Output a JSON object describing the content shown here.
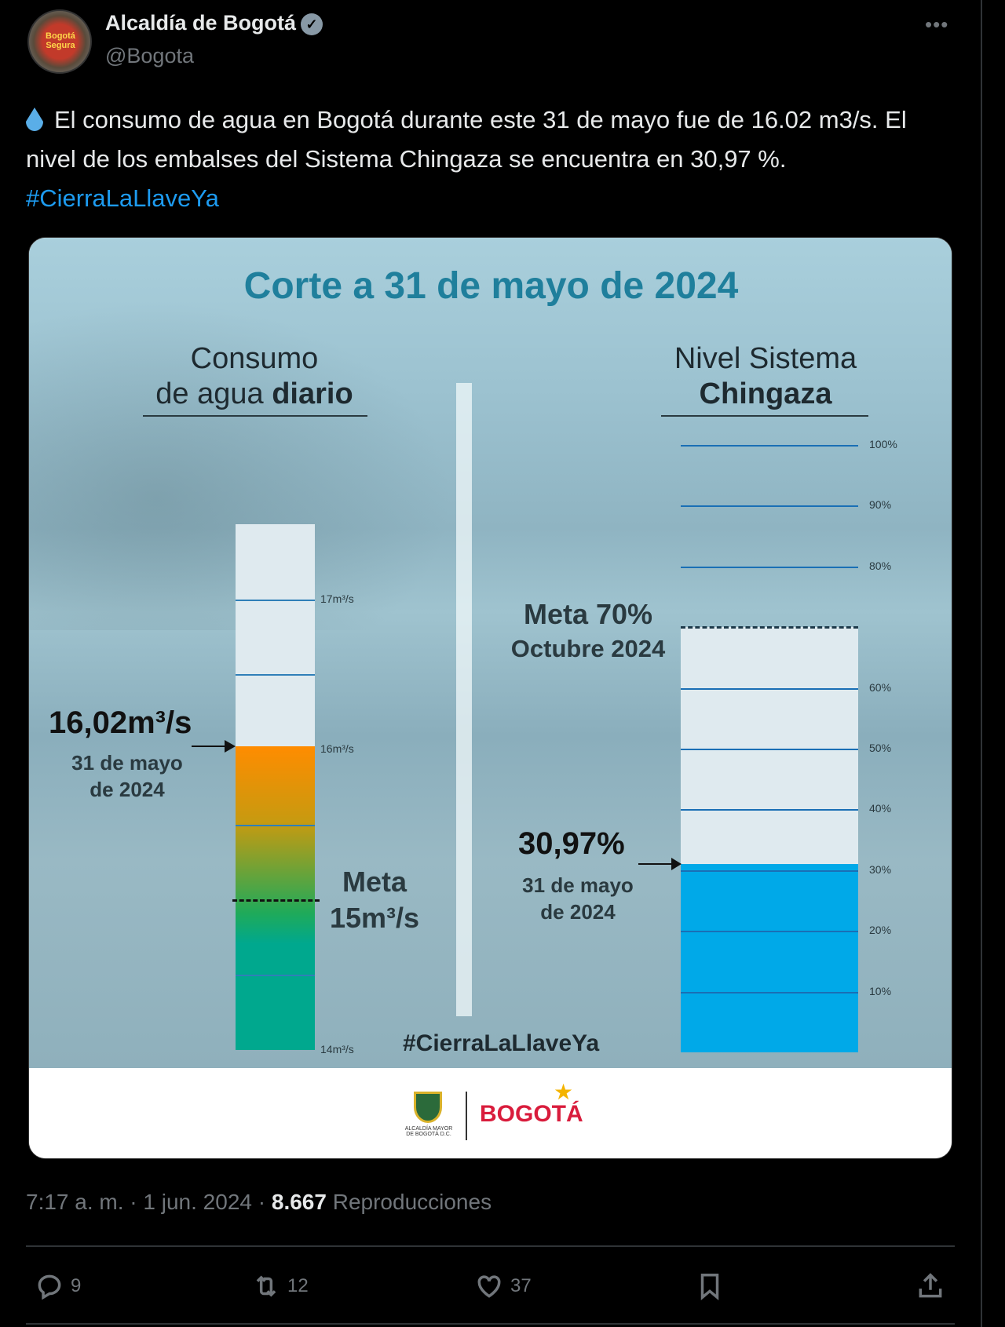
{
  "author": {
    "name": "Alcaldía de Bogotá",
    "handle": "@Bogota",
    "avatar_text": "Bogotá Segura",
    "verified": true
  },
  "tweet": {
    "text": "El consumo de agua en Bogotá durante este 31 de mayo fue de 16.02 m3/s. El nivel de los embalses del Sistema Chingaza se encuentra en 30,97 %.",
    "hashtag": "#CierraLaLlaveYa",
    "emoji": "droplet"
  },
  "infographic": {
    "title": "Corte a 31 de mayo de 2024",
    "left_heading": {
      "line1": "Consumo",
      "line2a": "de agua ",
      "line2b": "diario"
    },
    "right_heading": {
      "line1": "Nivel Sistema",
      "line2": "Chingaza"
    },
    "hashtag": "#CierraLaLlaveYa",
    "logo_left_text": "ALCALDÍA MAYOR DE BOGOTÁ D.C.",
    "logo_right_text": "BOGOTÁ"
  },
  "chart_data": [
    {
      "type": "bar",
      "orientation": "vertical-gauge",
      "value": 16.02,
      "value_label": "16,02m³/s",
      "date_label": [
        "31 de mayo",
        "de 2024"
      ],
      "target": 15,
      "target_label": [
        "Meta",
        "15m³/s"
      ],
      "ylim": [
        14,
        17.5
      ],
      "ticks": [
        {
          "value": 17,
          "label": "17m³/s"
        },
        {
          "value": 16,
          "label": "16m³/s"
        },
        {
          "value": 14,
          "label": "14m³/s"
        }
      ],
      "gridlines": [
        14.5,
        15.5,
        16.5,
        17
      ],
      "colors": {
        "top": "#ff8c00",
        "middle": "#1faa5a",
        "bottom": "#00a88e",
        "empty": "#dfeaef"
      }
    },
    {
      "type": "bar",
      "orientation": "vertical-gauge",
      "value": 30.97,
      "value_label": "30,97%",
      "date_label": [
        "31 de mayo",
        "de 2024"
      ],
      "target": 70,
      "target_label": [
        "Meta 70%",
        "Octubre 2024"
      ],
      "ylim": [
        0,
        100
      ],
      "ticks": [
        {
          "value": 100,
          "label": "100%"
        },
        {
          "value": 90,
          "label": "90%"
        },
        {
          "value": 80,
          "label": "80%"
        },
        {
          "value": 60,
          "label": "60%"
        },
        {
          "value": 50,
          "label": "50%"
        },
        {
          "value": 40,
          "label": "40%"
        },
        {
          "value": 30,
          "label": "30%"
        },
        {
          "value": 20,
          "label": "20%"
        },
        {
          "value": 10,
          "label": "10%"
        }
      ],
      "colors": {
        "fill": "#00a9e8",
        "empty": "#dfeaef",
        "line": "#1a6fb5"
      }
    }
  ],
  "footer": {
    "time": "7:17 a. m.",
    "date": "1 jun. 2024",
    "views": "8.667",
    "views_label": "Reproducciones"
  },
  "actions": {
    "replies": "9",
    "reposts": "12",
    "likes": "37"
  }
}
